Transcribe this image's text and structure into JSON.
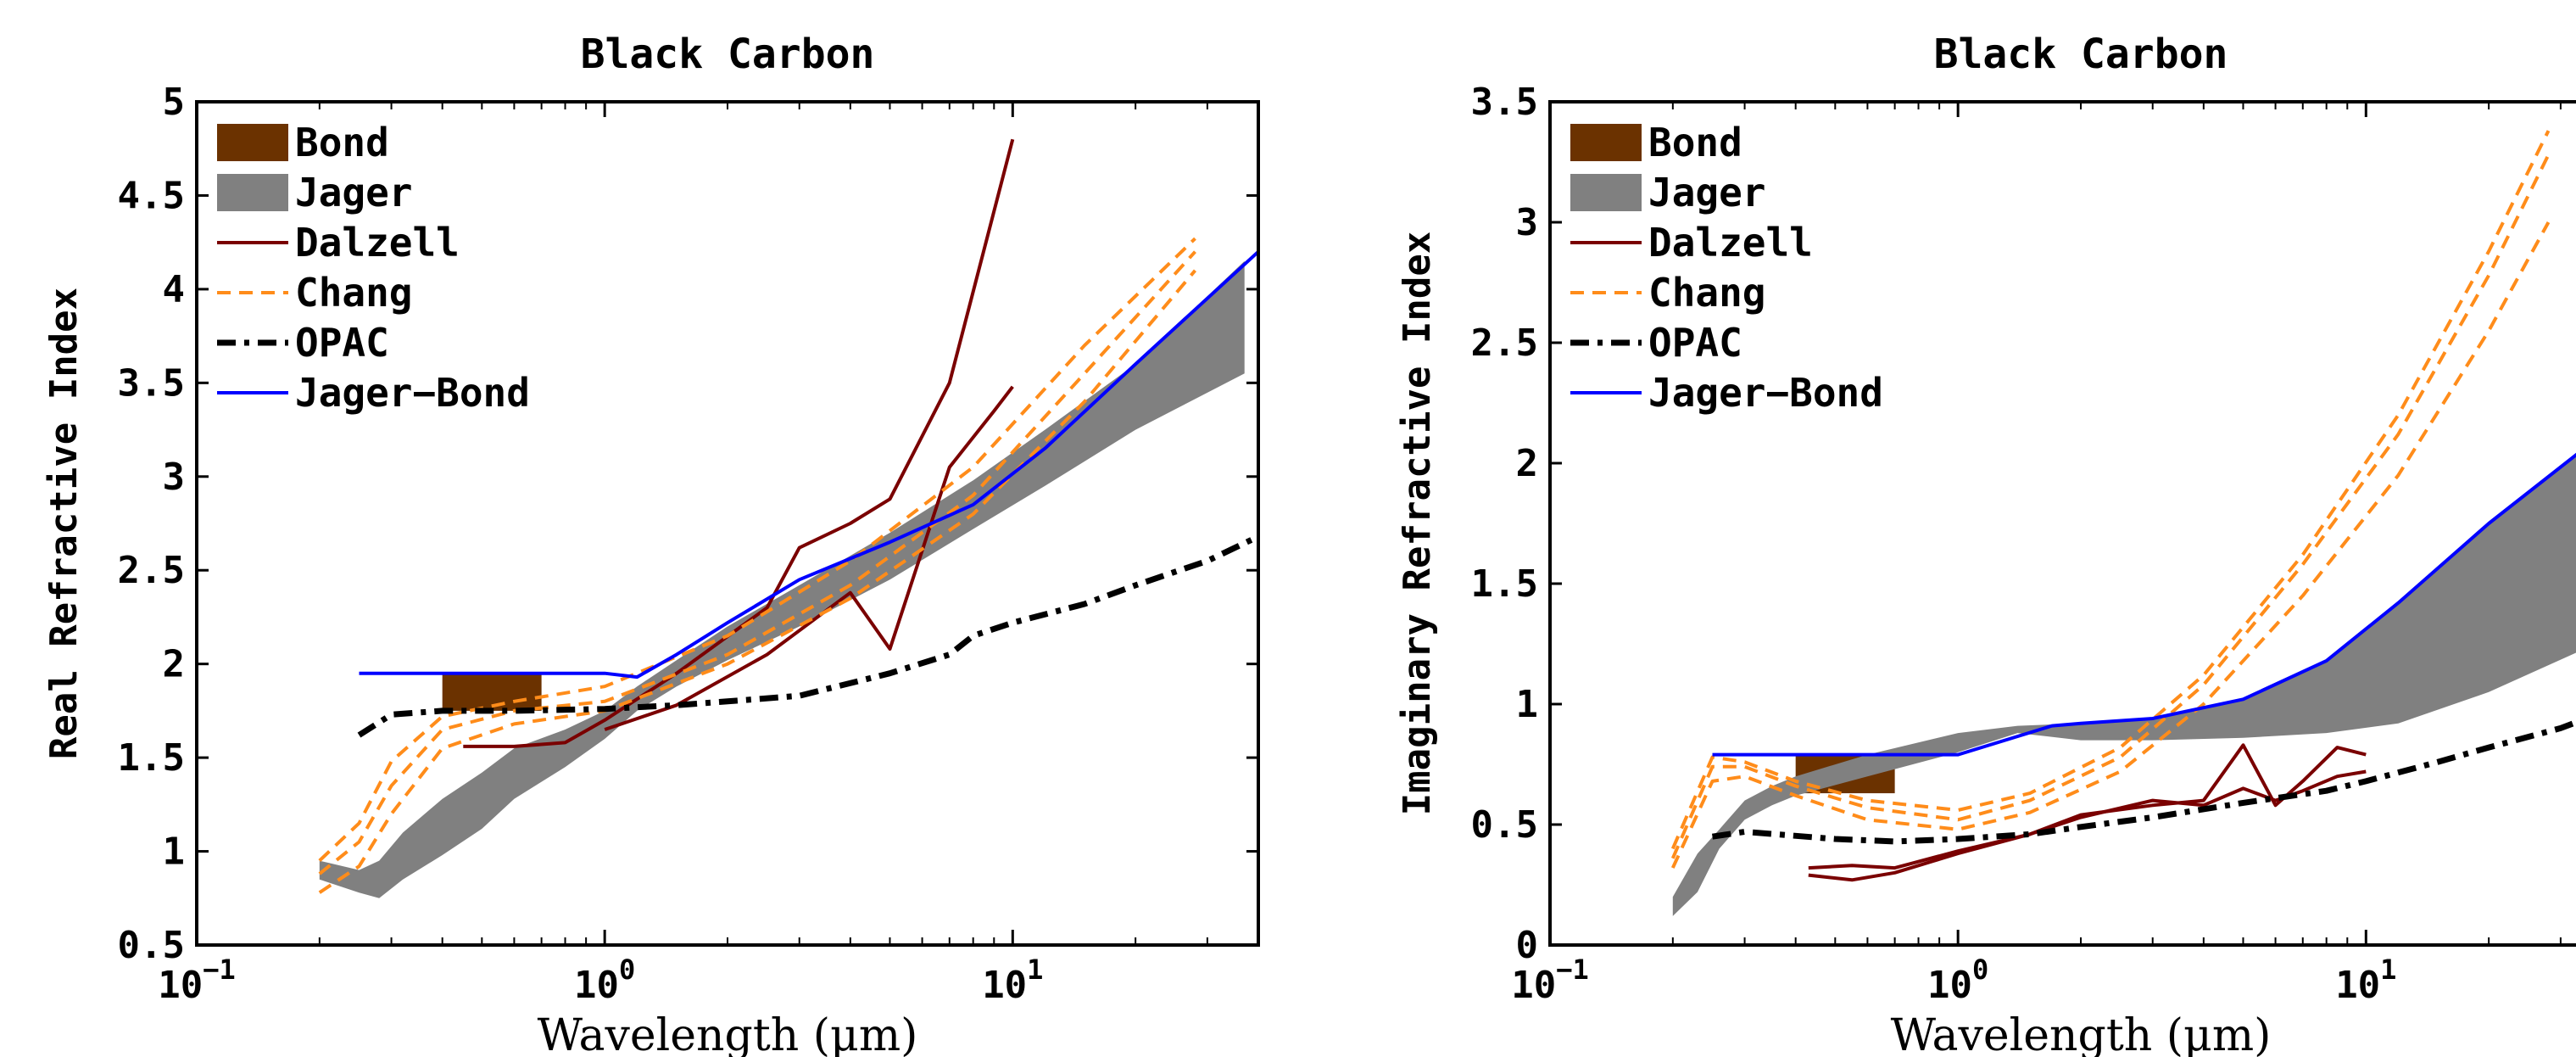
{
  "chart_data": [
    {
      "type": "line",
      "title": "Black Carbon",
      "xlabel": "Wavelength (μm)",
      "ylabel": "Real Refractive Index",
      "xscale": "log",
      "xlim": [
        0.1,
        40
      ],
      "ylim": [
        0.5,
        5
      ],
      "xticks": [
        {
          "value": 0.1,
          "base": "10",
          "exp": "−1"
        },
        {
          "value": 1,
          "base": "10",
          "exp": "0"
        },
        {
          "value": 10,
          "base": "10",
          "exp": "1"
        }
      ],
      "yticks": [
        {
          "value": 0.5,
          "label": "0.5"
        },
        {
          "value": 1,
          "label": "1"
        },
        {
          "value": 1.5,
          "label": "1.5"
        },
        {
          "value": 2,
          "label": "2"
        },
        {
          "value": 2.5,
          "label": "2.5"
        },
        {
          "value": 3,
          "label": "3"
        },
        {
          "value": 3.5,
          "label": "3.5"
        },
        {
          "value": 4,
          "label": "4"
        },
        {
          "value": 4.5,
          "label": "4.5"
        },
        {
          "value": 5,
          "label": "5"
        }
      ],
      "grid": false,
      "legend_position": "top-left",
      "legend": [
        "Bond",
        "Jager",
        "Dalzell",
        "Chang",
        "OPAC",
        "Jager−Bond"
      ],
      "series": [
        {
          "name": "Bond",
          "kind": "rect",
          "x_range": [
            0.4,
            0.7
          ],
          "y_range": [
            1.75,
            1.95
          ],
          "color": "#6b3200"
        },
        {
          "name": "Jager",
          "kind": "band",
          "color": "#808080",
          "x": [
            0.2,
            0.25,
            0.28,
            0.32,
            0.4,
            0.5,
            0.6,
            0.8,
            1.0,
            1.2,
            1.5,
            2.0,
            3.0,
            5.0,
            8.0,
            12.0,
            20.0,
            37.0
          ],
          "lower": [
            0.85,
            0.78,
            0.75,
            0.85,
            0.98,
            1.12,
            1.28,
            1.45,
            1.6,
            1.75,
            1.88,
            2.02,
            2.2,
            2.45,
            2.72,
            2.95,
            3.25,
            3.55
          ],
          "upper": [
            0.95,
            0.9,
            0.95,
            1.1,
            1.28,
            1.42,
            1.55,
            1.65,
            1.75,
            1.88,
            2.02,
            2.2,
            2.42,
            2.7,
            2.98,
            3.25,
            3.6,
            4.15
          ]
        },
        {
          "name": "Dalzell",
          "kind": "line",
          "color": "#7a0000",
          "lines": [
            {
              "x": [
                0.45,
                0.6,
                0.8,
                1.0,
                1.5,
                2.5,
                3.0,
                4.0,
                5.0,
                7.0,
                10.0
              ],
              "y": [
                1.56,
                1.56,
                1.58,
                1.7,
                1.95,
                2.3,
                2.62,
                2.75,
                2.88,
                3.5,
                4.8
              ]
            },
            {
              "x": [
                1.0,
                1.5,
                2.5,
                4.0,
                5.0,
                7.0,
                9.0,
                10.0
              ],
              "y": [
                1.65,
                1.78,
                2.05,
                2.38,
                2.08,
                3.05,
                3.35,
                3.48
              ]
            }
          ]
        },
        {
          "name": "Chang",
          "kind": "line",
          "dashed": true,
          "color": "#ff8c1a",
          "lines": [
            {
              "x": [
                0.2,
                0.25,
                0.3,
                0.4,
                0.6,
                1.0,
                2.0,
                4.0,
                8.0,
                15.0,
                28.0
              ],
              "y": [
                0.78,
                0.92,
                1.2,
                1.55,
                1.68,
                1.75,
                2.0,
                2.35,
                2.8,
                3.4,
                4.1
              ]
            },
            {
              "x": [
                0.2,
                0.25,
                0.3,
                0.4,
                0.6,
                1.0,
                2.0,
                4.0,
                8.0,
                15.0,
                28.0
              ],
              "y": [
                0.88,
                1.05,
                1.35,
                1.65,
                1.75,
                1.8,
                2.05,
                2.42,
                2.9,
                3.55,
                4.2
              ]
            },
            {
              "x": [
                0.2,
                0.25,
                0.3,
                0.4,
                0.6,
                1.0,
                2.0,
                4.0,
                8.0,
                15.0,
                28.0
              ],
              "y": [
                0.95,
                1.15,
                1.48,
                1.72,
                1.8,
                1.88,
                2.15,
                2.55,
                3.05,
                3.7,
                4.27
              ]
            }
          ]
        },
        {
          "name": "OPAC",
          "kind": "line",
          "dashdot": true,
          "color": "#000000",
          "x": [
            0.25,
            0.3,
            0.4,
            0.6,
            1.0,
            1.5,
            2.0,
            3.0,
            5.0,
            7.0,
            8.0,
            10.0,
            15.0,
            20.0,
            30.0,
            40.0
          ],
          "y": [
            1.62,
            1.73,
            1.75,
            1.75,
            1.76,
            1.78,
            1.8,
            1.83,
            1.95,
            2.05,
            2.15,
            2.22,
            2.32,
            2.42,
            2.55,
            2.68
          ]
        },
        {
          "name": "Jager−Bond",
          "kind": "line",
          "color": "#0000ff",
          "x": [
            0.25,
            0.4,
            0.7,
            1.0,
            1.2,
            1.5,
            2.0,
            3.0,
            5.0,
            8.0,
            12.0,
            20.0,
            40.0
          ],
          "y": [
            1.95,
            1.95,
            1.95,
            1.95,
            1.93,
            2.05,
            2.22,
            2.45,
            2.65,
            2.85,
            3.15,
            3.6,
            4.2
          ]
        }
      ]
    },
    {
      "type": "line",
      "title": "Black Carbon",
      "xlabel": "Wavelength (μm)",
      "ylabel": "Imaginary Refractive Index",
      "xscale": "log",
      "xlim": [
        0.1,
        40
      ],
      "ylim": [
        0,
        3.5
      ],
      "xticks": [
        {
          "value": 0.1,
          "base": "10",
          "exp": "−1"
        },
        {
          "value": 1,
          "base": "10",
          "exp": "0"
        },
        {
          "value": 10,
          "base": "10",
          "exp": "1"
        }
      ],
      "yticks": [
        {
          "value": 0,
          "label": "0"
        },
        {
          "value": 0.5,
          "label": "0.5"
        },
        {
          "value": 1,
          "label": "1"
        },
        {
          "value": 1.5,
          "label": "1.5"
        },
        {
          "value": 2,
          "label": "2"
        },
        {
          "value": 2.5,
          "label": "2.5"
        },
        {
          "value": 3,
          "label": "3"
        },
        {
          "value": 3.5,
          "label": "3.5"
        }
      ],
      "grid": false,
      "legend_position": "top-left",
      "legend": [
        "Bond",
        "Jager",
        "Dalzell",
        "Chang",
        "OPAC",
        "Jager−Bond"
      ],
      "series": [
        {
          "name": "Bond",
          "kind": "rect",
          "x_range": [
            0.4,
            0.7
          ],
          "y_range": [
            0.63,
            0.79
          ],
          "color": "#6b3200"
        },
        {
          "name": "Jager",
          "kind": "band",
          "color": "#808080",
          "x": [
            0.2,
            0.23,
            0.26,
            0.3,
            0.35,
            0.4,
            0.6,
            1.0,
            1.4,
            2.0,
            3.0,
            5.0,
            8.0,
            12.0,
            20.0,
            40.0
          ],
          "lower": [
            0.12,
            0.22,
            0.4,
            0.52,
            0.58,
            0.62,
            0.7,
            0.8,
            0.88,
            0.85,
            0.85,
            0.86,
            0.88,
            0.92,
            1.05,
            1.28
          ],
          "upper": [
            0.2,
            0.38,
            0.48,
            0.6,
            0.66,
            0.7,
            0.79,
            0.88,
            0.91,
            0.92,
            0.94,
            1.02,
            1.18,
            1.42,
            1.75,
            2.15
          ]
        },
        {
          "name": "Dalzell",
          "kind": "line",
          "color": "#7a0000",
          "lines": [
            {
              "x": [
                0.43,
                0.55,
                0.7,
                1.0,
                1.5,
                2.0,
                3.0,
                4.0,
                5.0,
                6.0,
                7.0,
                8.5,
                10.0
              ],
              "y": [
                0.29,
                0.27,
                0.3,
                0.38,
                0.46,
                0.53,
                0.6,
                0.58,
                0.65,
                0.6,
                0.64,
                0.7,
                0.72
              ]
            },
            {
              "x": [
                0.43,
                0.55,
                0.7,
                1.0,
                1.5,
                2.0,
                3.0,
                4.0,
                5.0,
                6.0,
                7.0,
                8.5,
                10.0
              ],
              "y": [
                0.32,
                0.33,
                0.32,
                0.39,
                0.46,
                0.54,
                0.58,
                0.6,
                0.83,
                0.58,
                0.68,
                0.82,
                0.79
              ]
            }
          ]
        },
        {
          "name": "Chang",
          "kind": "line",
          "dashed": true,
          "color": "#ff8c1a",
          "lines": [
            {
              "x": [
                0.2,
                0.25,
                0.3,
                0.4,
                0.6,
                1.0,
                1.5,
                2.5,
                4.0,
                7.0,
                12.0,
                20.0,
                28.0
              ],
              "y": [
                0.32,
                0.68,
                0.7,
                0.62,
                0.52,
                0.48,
                0.55,
                0.72,
                1.0,
                1.45,
                1.95,
                2.55,
                3.0
              ]
            },
            {
              "x": [
                0.2,
                0.25,
                0.3,
                0.4,
                0.6,
                1.0,
                1.5,
                2.5,
                4.0,
                7.0,
                12.0,
                20.0,
                28.0
              ],
              "y": [
                0.36,
                0.74,
                0.74,
                0.66,
                0.57,
                0.52,
                0.6,
                0.78,
                1.08,
                1.58,
                2.12,
                2.78,
                3.28
              ]
            },
            {
              "x": [
                0.2,
                0.25,
                0.3,
                0.4,
                0.6,
                1.0,
                1.5,
                2.5,
                4.0,
                7.0,
                12.0,
                20.0,
                28.0
              ],
              "y": [
                0.4,
                0.78,
                0.76,
                0.68,
                0.6,
                0.56,
                0.63,
                0.82,
                1.12,
                1.62,
                2.2,
                2.88,
                3.38
              ]
            }
          ]
        },
        {
          "name": "OPAC",
          "kind": "line",
          "dashdot": true,
          "color": "#000000",
          "x": [
            0.25,
            0.3,
            0.5,
            0.7,
            1.0,
            1.5,
            2.0,
            3.0,
            5.0,
            8.0,
            10.0,
            15.0,
            20.0,
            30.0,
            40.0
          ],
          "y": [
            0.45,
            0.47,
            0.44,
            0.43,
            0.44,
            0.46,
            0.49,
            0.53,
            0.59,
            0.64,
            0.68,
            0.76,
            0.82,
            0.9,
            0.98
          ]
        },
        {
          "name": "Jager−Bond",
          "kind": "line",
          "color": "#0000ff",
          "x": [
            0.25,
            0.4,
            0.7,
            1.0,
            1.7,
            2.0,
            3.0,
            5.0,
            8.0,
            12.0,
            20.0,
            40.0
          ],
          "y": [
            0.79,
            0.79,
            0.79,
            0.79,
            0.91,
            0.92,
            0.94,
            1.02,
            1.18,
            1.42,
            1.75,
            2.15
          ]
        }
      ]
    }
  ]
}
